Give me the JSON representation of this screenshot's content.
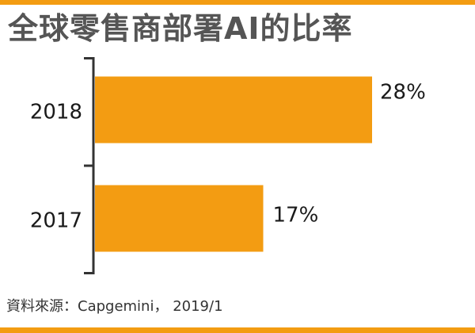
{
  "colors": {
    "accent": "#f39c12",
    "bar": "#f39c12",
    "axis": "#333333",
    "title": "#555555",
    "text": "#1a1a1a"
  },
  "chart_data": {
    "type": "bar",
    "orientation": "horizontal",
    "title": "全球零售商部署AI的比率",
    "categories": [
      "2018",
      "2017"
    ],
    "values": [
      28,
      17
    ],
    "data_labels": [
      "28%",
      "17%"
    ],
    "unit": "%",
    "xlim": [
      0,
      40
    ],
    "grid": false,
    "legend": "none"
  },
  "footer": {
    "source": "資料來源：Capgemini， 2019/1"
  }
}
